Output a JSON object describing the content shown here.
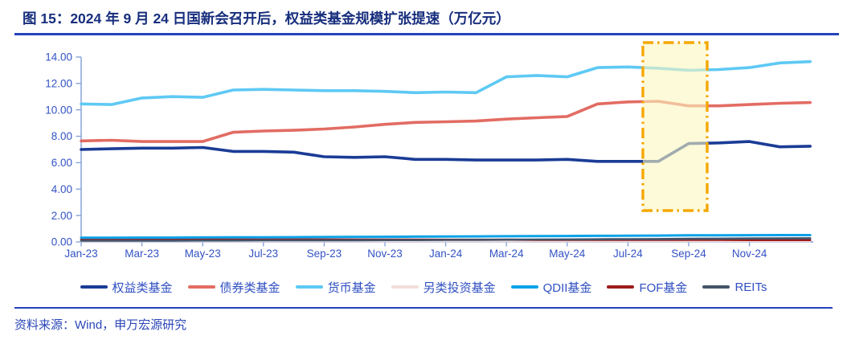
{
  "header": {
    "title": "图 15：2024 年 9 月 24 日国新会召开后，权益类基金规模扩张提速（万亿元）"
  },
  "footer": {
    "source": "资料来源：Wind，申万宏源研究"
  },
  "colors": {
    "title": "#172E7D",
    "rule": "#2443BE",
    "tick_label": "#3353C4",
    "axis": "#7F9ED6",
    "legend_text": "#3150C2"
  },
  "chart_data": {
    "type": "line",
    "unit": "万亿元",
    "grid": false,
    "legend_position": "bottom",
    "ylim": [
      0,
      14
    ],
    "yticks": [
      0,
      2,
      4,
      6,
      8,
      10,
      12,
      14
    ],
    "y_tick_labels": [
      "0.00",
      "2.00",
      "4.00",
      "6.00",
      "8.00",
      "10.00",
      "12.00",
      "14.00"
    ],
    "x": [
      "Jan-23",
      "Feb-23",
      "Mar-23",
      "Apr-23",
      "May-23",
      "Jun-23",
      "Jul-23",
      "Aug-23",
      "Sep-23",
      "Oct-23",
      "Nov-23",
      "Dec-23",
      "Jan-24",
      "Feb-24",
      "Mar-24",
      "Apr-24",
      "May-24",
      "Jun-24",
      "Jul-24",
      "Aug-24",
      "Sep-24",
      "Oct-24",
      "Nov-24",
      "Dec-24",
      "Jan-25"
    ],
    "x_tick_labels": [
      "Jan-23",
      "Mar-23",
      "May-23",
      "Jul-23",
      "Sep-23",
      "Nov-23",
      "Jan-24",
      "Mar-24",
      "May-24",
      "Jul-24",
      "Sep-24",
      "Nov-24"
    ],
    "series": [
      {
        "name": "权益类基金",
        "color": "#1A3C96",
        "values": [
          7.0,
          7.05,
          7.1,
          7.1,
          7.15,
          6.85,
          6.85,
          6.8,
          6.45,
          6.4,
          6.45,
          6.25,
          6.25,
          6.2,
          6.2,
          6.2,
          6.25,
          6.1,
          6.1,
          6.1,
          7.45,
          7.5,
          7.6,
          7.2,
          7.25
        ]
      },
      {
        "name": "债券类基金",
        "color": "#E26C63",
        "values": [
          7.65,
          7.7,
          7.6,
          7.6,
          7.6,
          8.3,
          8.4,
          8.45,
          8.55,
          8.7,
          8.9,
          9.05,
          9.1,
          9.15,
          9.3,
          9.4,
          9.5,
          10.45,
          10.6,
          10.65,
          10.3,
          10.3,
          10.4,
          10.5,
          10.55
        ]
      },
      {
        "name": "货币基金",
        "color": "#5EC9F4",
        "values": [
          10.45,
          10.4,
          10.9,
          11.0,
          10.95,
          11.5,
          11.55,
          11.5,
          11.45,
          11.45,
          11.4,
          11.3,
          11.35,
          11.3,
          12.5,
          12.6,
          12.5,
          13.2,
          13.25,
          13.15,
          13.0,
          13.05,
          13.2,
          13.55,
          13.65
        ]
      },
      {
        "name": "另类投资基金",
        "color": "#F3DDDB",
        "values": [
          0.05,
          0.05,
          0.05,
          0.05,
          0.05,
          0.05,
          0.05,
          0.05,
          0.05,
          0.05,
          0.05,
          0.05,
          0.05,
          0.05,
          0.05,
          0.05,
          0.05,
          0.05,
          0.05,
          0.05,
          0.05,
          0.05,
          0.05,
          0.05,
          0.05
        ]
      },
      {
        "name": "QDII基金",
        "color": "#0AA2E8",
        "values": [
          0.32,
          0.32,
          0.33,
          0.33,
          0.34,
          0.35,
          0.35,
          0.36,
          0.37,
          0.38,
          0.39,
          0.4,
          0.41,
          0.42,
          0.43,
          0.44,
          0.45,
          0.46,
          0.47,
          0.48,
          0.5,
          0.5,
          0.51,
          0.52,
          0.52
        ]
      },
      {
        "name": "FOF基金",
        "color": "#9E1B1B",
        "values": [
          0.2,
          0.2,
          0.2,
          0.2,
          0.2,
          0.19,
          0.19,
          0.19,
          0.19,
          0.18,
          0.18,
          0.18,
          0.17,
          0.17,
          0.17,
          0.16,
          0.16,
          0.16,
          0.15,
          0.15,
          0.15,
          0.15,
          0.14,
          0.14,
          0.14
        ]
      },
      {
        "name": "REITs",
        "color": "#44546A",
        "values": [
          0.09,
          0.09,
          0.1,
          0.1,
          0.11,
          0.11,
          0.12,
          0.12,
          0.13,
          0.13,
          0.14,
          0.14,
          0.15,
          0.16,
          0.17,
          0.18,
          0.19,
          0.2,
          0.21,
          0.22,
          0.24,
          0.25,
          0.26,
          0.27,
          0.28
        ]
      }
    ],
    "highlight_box": {
      "from_x": "Jul-24",
      "to_x": "Sep-24",
      "style": "dash-dot",
      "border_color": "#F5A700",
      "fill_color": "#FBF7C0"
    }
  }
}
